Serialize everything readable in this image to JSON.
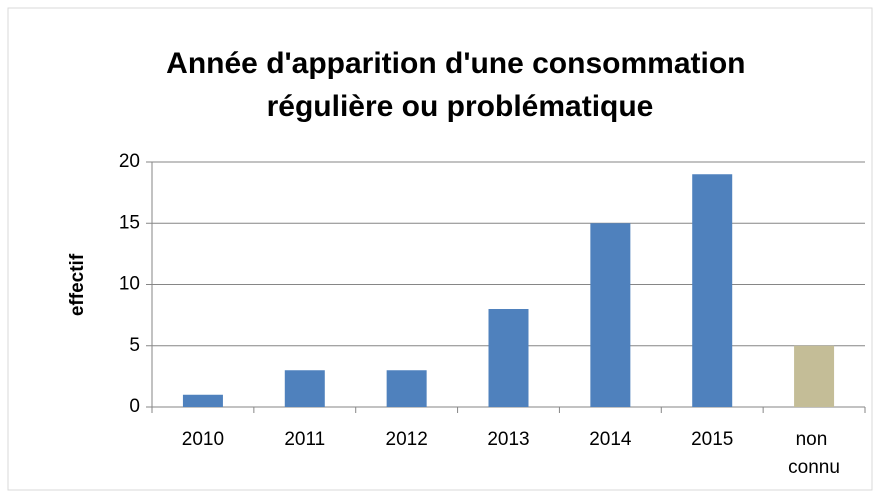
{
  "chart_data": {
    "type": "bar",
    "title": "Année d'apparition d'une consommation régulière ou problématique",
    "y_label": "effectif",
    "categories": [
      "2010",
      "2011",
      "2012",
      "2013",
      "2014",
      "2015",
      "non connu"
    ],
    "values": [
      1,
      3,
      3,
      8,
      15,
      19,
      5
    ],
    "colors": [
      "#4f81bd",
      "#4f81bd",
      "#4f81bd",
      "#4f81bd",
      "#4f81bd",
      "#4f81bd",
      "#c4bd97"
    ],
    "ylim": [
      0,
      20
    ],
    "yticks": [
      0,
      5,
      10,
      15,
      20
    ],
    "grid": true
  }
}
